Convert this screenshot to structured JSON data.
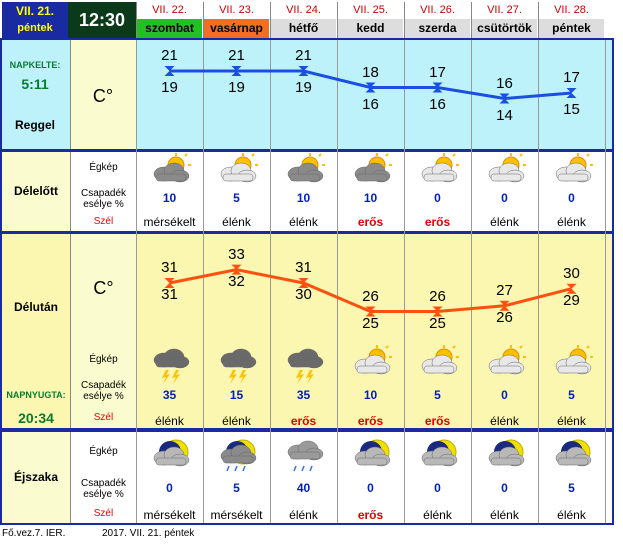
{
  "header": {
    "date_line1": "VII. 21.",
    "date_line2": "péntek",
    "time": "12:30",
    "days": [
      {
        "date": "VII. 22.",
        "name": "szombat",
        "bg": "#22c022"
      },
      {
        "date": "VII. 23.",
        "name": "vasárnap",
        "bg": "#f07020"
      },
      {
        "date": "VII. 24.",
        "name": "hétfő",
        "bg": "#dddddd"
      },
      {
        "date": "VII. 25.",
        "name": "kedd",
        "bg": "#dddddd"
      },
      {
        "date": "VII. 26.",
        "name": "szerda",
        "bg": "#dddddd"
      },
      {
        "date": "VII. 27.",
        "name": "csütörtök",
        "bg": "#dddddd"
      },
      {
        "date": "VII. 28.",
        "name": "péntek",
        "bg": "#dddddd"
      }
    ]
  },
  "sections": {
    "reggel": {
      "sunrise_label": "NAPKELTE:",
      "sunrise_time": "5:11",
      "title": "Reggel",
      "unit": "C°",
      "upper": [
        21,
        21,
        21,
        18,
        17,
        16,
        17
      ],
      "lower": [
        19,
        19,
        19,
        16,
        16,
        14,
        15
      ],
      "line_values": [
        20,
        20,
        20,
        17,
        17,
        15,
        16
      ],
      "line_color": "#1a50e0"
    },
    "delelott": {
      "title": "Délelőtt",
      "label_sky": "Égkép",
      "label_precip": "Csapadék esélye %",
      "label_wind": "Szél",
      "icons": [
        "cloud-sun-icon",
        "sun-cloud-icon",
        "cloud-sun-icon",
        "cloud-sun-icon",
        "sun-cloud-icon",
        "sun-cloud-icon",
        "sun-cloud-icon"
      ],
      "precip": [
        "10",
        "5",
        "10",
        "10",
        "0",
        "0",
        "0"
      ],
      "wind": [
        "mérsékelt",
        "élénk",
        "élénk",
        "erős",
        "erős",
        "élénk",
        "élénk"
      ]
    },
    "delutan": {
      "title": "Délután",
      "unit": "C°",
      "label_sky": "Égkép",
      "label_precip": "Csapadék esélye %",
      "label_wind": "Szél",
      "sunset_label": "NAPNYUGTA:",
      "sunset_time": "20:34",
      "upper": [
        31,
        33,
        31,
        26,
        26,
        27,
        30
      ],
      "lower": [
        31,
        32,
        30,
        25,
        25,
        26,
        29
      ],
      "line_values": [
        31,
        33,
        31,
        26,
        26,
        27,
        30
      ],
      "line_color": "#ff5010",
      "icons": [
        "thunderstorm-icon",
        "thunderstorm-icon",
        "thunderstorm-icon",
        "sun-cloud-icon",
        "sun-cloud-icon",
        "sun-cloud-icon",
        "sun-cloud-icon"
      ],
      "precip": [
        "35",
        "15",
        "35",
        "10",
        "5",
        "0",
        "5"
      ],
      "wind": [
        "élénk",
        "élénk",
        "erős",
        "erős",
        "erős",
        "élénk",
        "élénk"
      ]
    },
    "ejszaka": {
      "title": "Éjszaka",
      "label_sky": "Égkép",
      "label_precip": "Csapadék esélye %",
      "label_wind": "Szél",
      "icons": [
        "moon-cloud-icon",
        "moon-rain-icon",
        "rain-cloud-icon",
        "moon-cloud-icon",
        "moon-cloud-icon",
        "moon-cloud-icon",
        "moon-cloud-icon"
      ],
      "precip": [
        "0",
        "5",
        "40",
        "0",
        "0",
        "0",
        "5"
      ],
      "wind": [
        "mérsékelt",
        "mérsékelt",
        "élénk",
        "erős",
        "élénk",
        "élénk",
        "élénk"
      ]
    }
  },
  "footer": {
    "left": "Fő.vez.7. IER.",
    "right": "2017. VII. 21. péntek"
  }
}
